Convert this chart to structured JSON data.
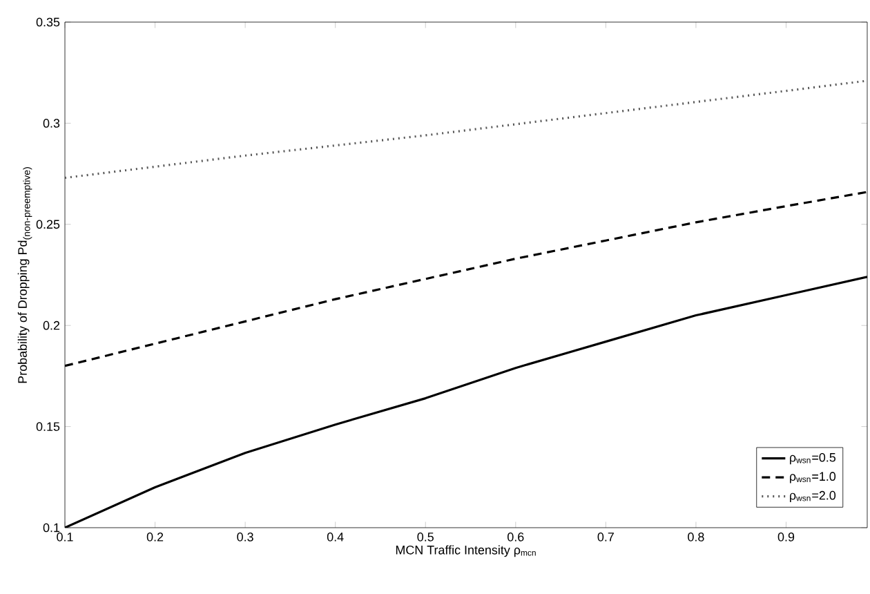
{
  "chart_data": {
    "type": "line",
    "xlabel": "MCN Traffic Intensity ρ$_{mcn}$",
    "ylabel": "\\mbox{Probability of Dropping Pd}_{\\mbox{\\scriptsize (non-preemptive)}}",
    "x": [
      0.1,
      0.2,
      0.3,
      0.4,
      0.5,
      0.6,
      0.7,
      0.8,
      0.9,
      0.99
    ],
    "series": [
      {
        "name": "ρ$_{wsn}$=0.5",
        "color": "#000000",
        "line_style": "solid",
        "values": [
          0.1,
          0.12,
          0.137,
          0.151,
          0.164,
          0.179,
          0.192,
          0.205,
          0.215,
          0.224
        ]
      },
      {
        "name": "ρ$_{wsn}$=1.0",
        "color": "#000000",
        "line_style": "dashed",
        "values": [
          0.18,
          0.191,
          0.202,
          0.213,
          0.223,
          0.233,
          0.242,
          0.251,
          0.259,
          0.266
        ]
      },
      {
        "name": "ρ$_{wsn}$=2.0",
        "color": "#555555",
        "line_style": "dotted",
        "x": [
          0.1,
          0.3,
          0.5,
          0.7,
          0.9,
          0.99
        ],
        "values": [
          0.273,
          0.284,
          0.294,
          0.305,
          0.316,
          0.321
        ]
      }
    ],
    "xlim": [
      0.1,
      0.99
    ],
    "ylim": [
      0.1,
      0.35
    ],
    "xticks": [
      0.1,
      0.2,
      0.3,
      0.4,
      0.5,
      0.6,
      0.7,
      0.8,
      0.9
    ],
    "yticks": [
      0.1,
      0.15,
      0.2,
      0.25,
      0.3,
      0.35
    ],
    "grid": false,
    "legend": "bottom right",
    "marker": "none"
  }
}
